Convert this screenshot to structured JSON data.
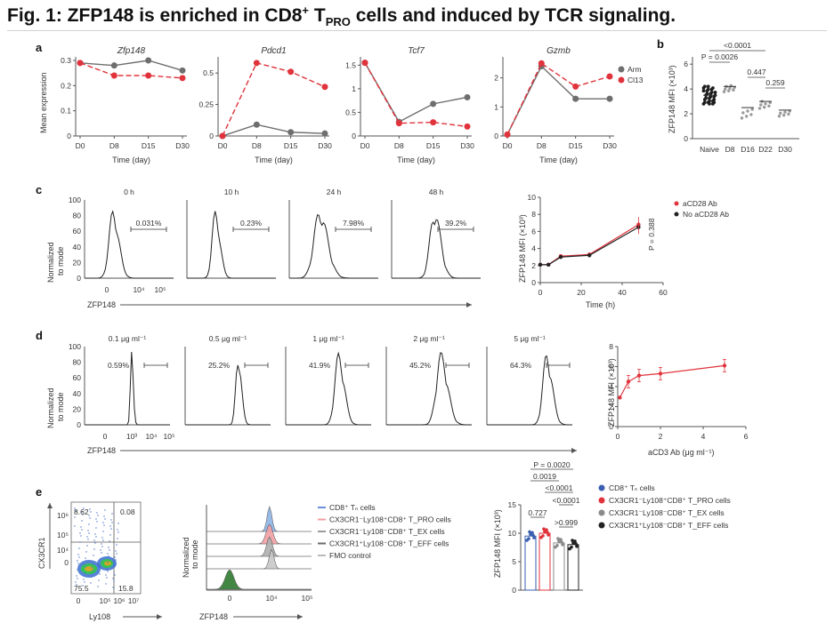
{
  "figure": {
    "title_prefix": "Fig. 1: ZFP148 is enriched in CD8",
    "title_sup": "+",
    "title_mid": " T",
    "title_sub": "PRO",
    "title_suffix": " cells and induced by TCR signaling."
  },
  "panels": {
    "a": {
      "letter": "a",
      "ylabel": "Mean expression",
      "xlabel": "Time (day)",
      "x_ticks": [
        "D0",
        "D8",
        "D15",
        "D30"
      ],
      "legend": [
        "Arm",
        "Cl13"
      ],
      "colors": {
        "arm": "#6e6e6e",
        "cl13": "#e0333c"
      }
    },
    "b": {
      "letter": "b",
      "ylabel": "ZFP148 MFI (×10³)",
      "categories": [
        "Naive",
        "D8",
        "D16",
        "D22",
        "D30"
      ],
      "y_ticks": [
        "0",
        "2",
        "4",
        "6"
      ],
      "stats": [
        "<0.0001",
        "P = 0.0026",
        "0.447",
        "0.259"
      ]
    },
    "c": {
      "letter": "c",
      "timepoints": [
        "0 h",
        "10 h",
        "24 h",
        "48 h"
      ],
      "percents": [
        "0.031%",
        "0.23%",
        "7.98%",
        "39.2%"
      ],
      "hist_ylabel_1": "Normalized",
      "hist_ylabel_2": "to mode",
      "y_ticks": [
        "0",
        "20",
        "40",
        "60",
        "80",
        "100"
      ],
      "x_ticks": [
        "0",
        "10⁴",
        "10⁵"
      ],
      "xaxis_label": "ZFP148",
      "line_ylabel": "ZFP148 MFI (×10³)",
      "line_xlabel": "Time (h)",
      "line_x_ticks": [
        "0",
        "20",
        "40",
        "60"
      ],
      "line_y_ticks": [
        "0",
        "2",
        "4",
        "6",
        "8",
        "10"
      ],
      "legend": [
        "aCD28 Ab",
        "No aCD28 Ab"
      ],
      "pvalue": "P = 0.388"
    },
    "d": {
      "letter": "d",
      "concentrations": [
        "0.1 μg ml⁻¹",
        "0.5 μg ml⁻¹",
        "1 μg ml⁻¹",
        "2 μg ml⁻¹",
        "5 μg ml⁻¹"
      ],
      "percents": [
        "0.59%",
        "25.2%",
        "41.9%",
        "45.2%",
        "64.3%"
      ],
      "x_ticks": [
        "0",
        "10³",
        "10⁴",
        "10⁵"
      ],
      "xaxis_label": "ZFP148",
      "line_ylabel": "ZFP148 MFI (×10³)",
      "line_xlabel": "aCD3 Ab (μg ml⁻¹)",
      "line_x_ticks": [
        "0",
        "2",
        "4",
        "6"
      ],
      "line_y_ticks": [
        "0",
        "2",
        "4",
        "6",
        "8"
      ]
    },
    "e": {
      "letter": "e",
      "flow_ylabel": "CX3CR1",
      "flow_xlabel": "Ly108",
      "quadrants": [
        "8.62",
        "0.08",
        "75.5",
        "15.8"
      ],
      "flow_y_ticks": [
        "10⁶",
        "10⁵",
        "10⁴",
        "0"
      ],
      "flow_x_ticks": [
        "0",
        "10⁵",
        "10⁶",
        "10⁷"
      ],
      "hist_xlabel": "ZFP148",
      "hist_x_ticks": [
        "0",
        "10⁴",
        "10⁵"
      ],
      "hist_legend": [
        "CD8⁺ Tₙ cells",
        "CX3CR1⁻Ly108⁺CD8⁺ T_PRO cells",
        "CX3CR1⁻Ly108⁻CD8⁺ T_EX cells",
        "CX3CR1⁺Ly108⁻CD8⁺ T_EFF cells",
        "FMO control"
      ],
      "bar_ylabel": "ZFP148 MFI (×10³)",
      "bar_y_ticks": [
        "0",
        "5",
        "10",
        "15"
      ],
      "stats": [
        "P = 0.0020",
        "0.0019",
        "<0.0001",
        "<0.0001",
        "0.727",
        ">0.999"
      ],
      "legend": [
        "CD8⁺ Tₙ cells",
        "CX3CR1⁻Ly108⁺CD8⁺ T_PRO cells",
        "CX3CR1⁻Ly108⁻CD8⁺ T_EX cells",
        "CX3CR1⁺Ly108⁻CD8⁺ T_EFF cells"
      ],
      "legend_colors": [
        "#3a5fb0",
        "#e0333c",
        "#8a8a8a",
        "#222222"
      ]
    }
  },
  "chart_data": [
    {
      "type": "line",
      "title": "Zfp148",
      "x": [
        "D0",
        "D8",
        "D15",
        "D30"
      ],
      "ylim": [
        0,
        0.3
      ],
      "y_ticks": [
        0,
        0.1,
        0.2,
        0.3
      ],
      "series": [
        {
          "name": "Arm",
          "values": [
            0.29,
            0.28,
            0.3,
            0.26
          ]
        },
        {
          "name": "Cl13",
          "values": [
            0.29,
            0.24,
            0.24,
            0.23
          ]
        }
      ]
    },
    {
      "type": "line",
      "title": "Pdcd1",
      "x": [
        "D0",
        "D8",
        "D15",
        "D30"
      ],
      "ylim": [
        0,
        0.6
      ],
      "y_ticks": [
        0,
        0.25,
        0.5
      ],
      "series": [
        {
          "name": "Arm",
          "values": [
            0.0,
            0.09,
            0.03,
            0.02
          ]
        },
        {
          "name": "Cl13",
          "values": [
            0.0,
            0.58,
            0.51,
            0.39
          ]
        }
      ]
    },
    {
      "type": "line",
      "title": "Tcf7",
      "x": [
        "D0",
        "D8",
        "D15",
        "D30"
      ],
      "ylim": [
        0,
        1.6
      ],
      "y_ticks": [
        0,
        0.5,
        1.0,
        1.5
      ],
      "series": [
        {
          "name": "Arm",
          "values": [
            1.55,
            0.3,
            0.68,
            0.82
          ]
        },
        {
          "name": "Cl13",
          "values": [
            1.55,
            0.27,
            0.29,
            0.2
          ]
        }
      ]
    },
    {
      "type": "line",
      "title": "Gzmb",
      "x": [
        "D0",
        "D8",
        "D15",
        "D30"
      ],
      "ylim": [
        0,
        2.6
      ],
      "y_ticks": [
        0,
        1,
        2
      ],
      "series": [
        {
          "name": "Arm",
          "values": [
            0.05,
            2.4,
            1.28,
            1.28
          ]
        },
        {
          "name": "Cl13",
          "values": [
            0.05,
            2.5,
            1.7,
            2.05
          ]
        }
      ]
    },
    {
      "type": "line",
      "x": [
        0,
        4,
        10,
        24,
        48
      ],
      "ylim": [
        0,
        10
      ],
      "xlim": [
        0,
        60
      ],
      "series": [
        {
          "name": "aCD28 Ab",
          "values": [
            2.1,
            2.1,
            3.1,
            3.3,
            6.8
          ]
        },
        {
          "name": "No aCD28 Ab",
          "values": [
            2.1,
            2.1,
            3.0,
            3.2,
            6.5
          ]
        }
      ]
    },
    {
      "type": "line",
      "x": [
        0.1,
        0.5,
        1,
        2,
        5
      ],
      "ylim": [
        0,
        8
      ],
      "xlim": [
        0,
        6
      ],
      "series": [
        {
          "values": [
            2.9,
            4.5,
            5.1,
            5.3,
            6.1
          ]
        }
      ]
    },
    {
      "type": "bar",
      "categories": [
        "Tₙ",
        "T_PRO",
        "T_EX",
        "T_EFF"
      ],
      "values": [
        9.5,
        10.0,
        8.3,
        8.0
      ],
      "ylim": [
        0,
        15
      ]
    }
  ]
}
